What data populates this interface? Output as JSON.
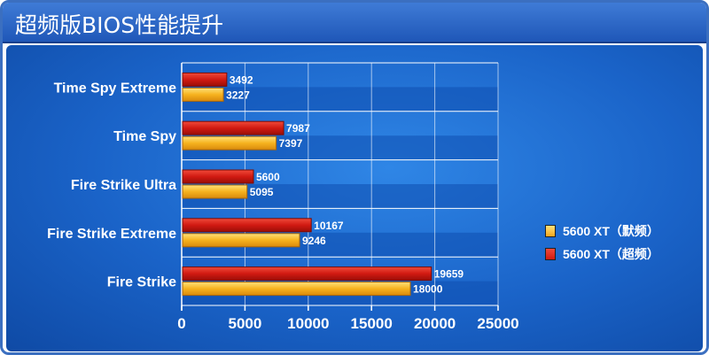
{
  "title": "超频版BIOS性能提升",
  "colors": {
    "default": "#f2a51c",
    "overclock": "#d11a12",
    "axis_text": "#ffffff",
    "label_text": "#ffffff"
  },
  "chart_data": {
    "type": "bar",
    "orientation": "horizontal",
    "title": "超频版BIOS性能提升",
    "categories": [
      "Time Spy Extreme",
      "Time Spy",
      "Fire Strike Ultra",
      "Fire Strike Extreme",
      "Fire Strike"
    ],
    "series": [
      {
        "name": "5600 XT（超频）",
        "values": [
          3492,
          7987,
          5600,
          10167,
          19659
        ]
      },
      {
        "name": "5600 XT（默频）",
        "values": [
          3227,
          7397,
          5095,
          9246,
          18000
        ]
      }
    ],
    "xlim": [
      0,
      25000
    ],
    "xticks": [
      "0",
      "5000",
      "10000",
      "15000",
      "20000",
      "25000"
    ],
    "grid": true,
    "legend_position": "right",
    "legend": [
      {
        "name": "5600 XT（默频）",
        "color": "#f2a51c"
      },
      {
        "name": "5600 XT（超频）",
        "color": "#d11a12"
      }
    ]
  }
}
